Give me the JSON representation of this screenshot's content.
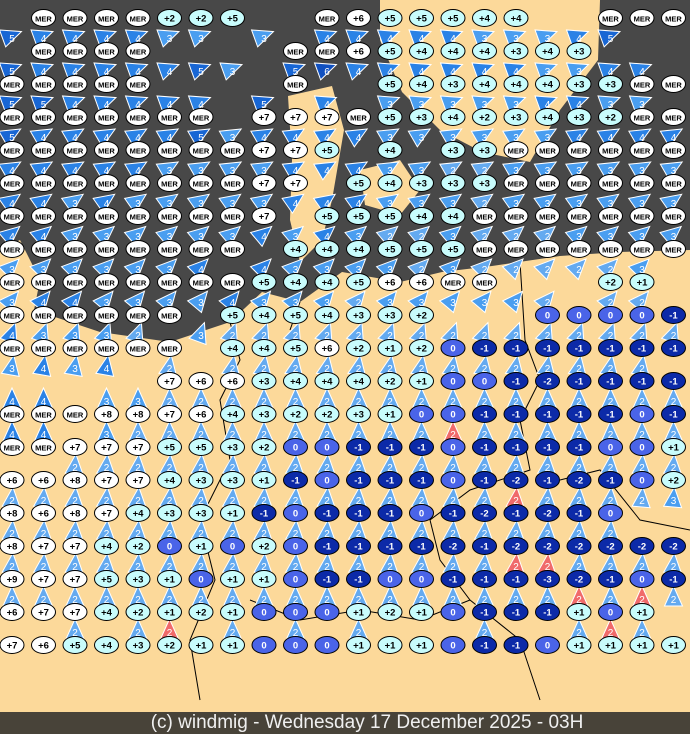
{
  "footer": {
    "credit": "(c) windmig - Wednesday 17 December 2025 - 03H"
  },
  "colors": {
    "sea": "#484848",
    "land": "#fcd99a",
    "border": "#000000",
    "temp_mer": "#ffffff",
    "temp_warm": "#ffffff",
    "temp_mild": "#c8fcfc",
    "temp_zero": "#4a64e8",
    "temp_minus": "#0c2aa8",
    "wind_2": "#64aaf0",
    "wind_3": "#4a9ef0",
    "wind_4": "#2a82e6",
    "wind_5": "#1866d4",
    "wind_6": "#1050c0",
    "wind_gust": "#f06a6a"
  },
  "map": {
    "rows": [
      {
        "temps": [
          "",
          "MER",
          "MER",
          "MER",
          "MER",
          "+2",
          "+2",
          "+5",
          "",
          "",
          "MER",
          "+6",
          "+5",
          "+5",
          "+5",
          "+4",
          "+4",
          "",
          "",
          "MER",
          "MER",
          "MER"
        ],
        "winds": "5444433 3 4444433345 ",
        "wind_dir_deg": 250
      },
      {
        "temps": [
          "",
          "MER",
          "MER",
          "MER",
          "MER",
          "",
          "",
          "",
          "",
          "MER",
          "MER",
          "+6",
          "+5",
          "+4",
          "+4",
          "+4",
          "+3",
          "+4",
          "+3",
          "",
          "",
          ""
        ],
        "winds": "54444453 564444443344",
        "wind_dir_deg": 250
      },
      {
        "temps": [
          "MER",
          "MER",
          "MER",
          "MER",
          "MER",
          "",
          "",
          "",
          "",
          "MER",
          "",
          "",
          "+5",
          "+4",
          "+3",
          "+4",
          "+4",
          "+4",
          "+3",
          "+3",
          "MER",
          "MER"
        ],
        "winds": "5544444 5 4 333334433",
        "wind_dir_deg": 250
      },
      {
        "temps": [
          "MER",
          "MER",
          "MER",
          "MER",
          "MER",
          "MER",
          "MER",
          "",
          "+7",
          "+7",
          "+7",
          "MER",
          "+5",
          "+3",
          "+4",
          "+2",
          "+3",
          "+4",
          "+3",
          "+2",
          "MER",
          "MER"
        ],
        "winds": "5444445344443333334444",
        "wind_dir_deg": 240
      },
      {
        "temps": [
          "MER",
          "MER",
          "MER",
          "MER",
          "MER",
          "MER",
          "MER",
          "MER",
          "+7",
          "+7",
          "+5",
          "",
          "+4",
          "",
          "+3",
          "+3",
          "MER",
          "MER",
          "MER",
          "MER",
          "MER",
          "MER"
        ],
        "winds": "4444433334443322333333",
        "wind_dir_deg": 240
      },
      {
        "temps": [
          "MER",
          "MER",
          "MER",
          "MER",
          "MER",
          "MER",
          "MER",
          "MER",
          "+7",
          "+7",
          "",
          "+5",
          "+4",
          "+3",
          "+3",
          "+3",
          "MER",
          "MER",
          "MER",
          "MER",
          "MER",
          "MER"
        ],
        "winds": "4434333334443332333333",
        "wind_dir_deg": 235
      },
      {
        "temps": [
          "MER",
          "MER",
          "MER",
          "MER",
          "MER",
          "MER",
          "MER",
          "MER",
          "+7",
          "",
          "+5",
          "+5",
          "+5",
          "+4",
          "+4",
          "MER",
          "MER",
          "MER",
          "MER",
          "MER",
          "MER",
          "MER"
        ],
        "winds": "4433333343432232223333",
        "wind_dir_deg": 230
      },
      {
        "temps": [
          "MER",
          "MER",
          "MER",
          "MER",
          "MER",
          "MER",
          "MER",
          "MER",
          "",
          "+4",
          "+4",
          "+4",
          "+5",
          "+5",
          "+5",
          "MER",
          "MER",
          "MER",
          "MER",
          "MER",
          "MER",
          "MER"
        ],
        "winds": "3333334 4333323222223 ",
        "wind_dir_deg": 225
      },
      {
        "temps": [
          "MER",
          "MER",
          "MER",
          "MER",
          "MER",
          "MER",
          "MER",
          "MER",
          "+5",
          "+4",
          "+4",
          "+5",
          "+6",
          "+6",
          "MER",
          "MER",
          "",
          "",
          "",
          "+2",
          "+1",
          ""
        ],
        "winds": "344333343332333332 22 ",
        "wind_dir_deg": 220
      },
      {
        "temps": [
          "MER",
          "MER",
          "MER",
          "MER",
          "MER",
          "MER",
          "",
          "+5",
          "+4",
          "+5",
          "+4",
          "+3",
          "+3",
          "+2",
          "",
          "",
          "",
          "0",
          "0",
          "0",
          "0",
          "-1"
        ],
        "winds": "43332 3222222222222222",
        "wind_dir_deg": 200
      },
      {
        "temps": [
          "MER",
          "MER",
          "MER",
          "MER",
          "MER",
          "MER",
          "",
          "+4",
          "+4",
          "+5",
          "+6",
          "+2",
          "+1",
          "+2",
          "0",
          "-1",
          "-1",
          "-1",
          "-1",
          "-1",
          "-1",
          "-1"
        ],
        "winds": "3434 2 22222222222222",
        "wind_dir_deg": 190
      },
      {
        "temps": [
          "",
          "",
          "",
          "",
          "",
          "+7",
          "+6",
          "+6",
          "+3",
          "+4",
          "+4",
          "+4",
          "+2",
          "+1",
          "0",
          "0",
          "-1",
          "-2",
          "-1",
          "-1",
          "-1",
          "-1"
        ],
        "winds": "44 3322222222222222222",
        "wind_dir_deg": 180
      },
      {
        "temps": [
          "MER",
          "MER",
          "MER",
          "+8",
          "+8",
          "+7",
          "+6",
          "+4",
          "+3",
          "+2",
          "+2",
          "+3",
          "+1",
          "0",
          "0",
          "-1",
          "-1",
          "-1",
          "-1",
          "-1",
          "0",
          "-1"
        ],
        "winds": "44 32222222222r2222222",
        "wind_dir_deg": 180
      },
      {
        "temps": [
          "MER",
          "MER",
          "+7",
          "+7",
          "+7",
          "+5",
          "+5",
          "+3",
          "+2",
          "0",
          "0",
          "-1",
          "-1",
          "-1",
          "0",
          "-1",
          "-1",
          "-1",
          "-1",
          "0",
          "0",
          "+1"
        ],
        "winds": "  22222222222222222222",
        "wind_dir_deg": 185
      },
      {
        "temps": [
          "+6",
          "+6",
          "+8",
          "+7",
          "+7",
          "+4",
          "+3",
          "+3",
          "+1",
          "-1",
          "0",
          "-1",
          "-1",
          "-1",
          "0",
          "-1",
          "-2",
          "-1",
          "-2",
          "-1",
          "0",
          "+2"
        ],
        "winds": "2222222222222222r22223",
        "wind_dir_deg": 185
      },
      {
        "temps": [
          "+8",
          "+6",
          "+8",
          "+7",
          "+4",
          "+3",
          "+3",
          "+1",
          "-1",
          "0",
          "-1",
          "-1",
          "-1",
          "0",
          "-1",
          "-2",
          "-1",
          "-2",
          "-1",
          "0",
          "",
          ""
        ],
        "winds": "22222222222222222222  ",
        "wind_dir_deg": 185
      },
      {
        "temps": [
          "+8",
          "+7",
          "+7",
          "+4",
          "+2",
          "0",
          "+1",
          "0",
          "+2",
          "0",
          "-1",
          "-1",
          "-1",
          "-1",
          "-2",
          "-1",
          "-2",
          "-2",
          "-2",
          "-2",
          "-2",
          "-2"
        ],
        "winds": "2222222222222222rr2222",
        "wind_dir_deg": 185
      },
      {
        "temps": [
          "+9",
          "+7",
          "+7",
          "+5",
          "+3",
          "+1",
          "0",
          "+1",
          "+1",
          "0",
          "-1",
          "-1",
          "0",
          "0",
          "-1",
          "-1",
          "-1",
          "-3",
          "-2",
          "-1",
          "0",
          "-1"
        ],
        "winds": "222222222222222222r2r2",
        "wind_dir_deg": 180
      },
      {
        "temps": [
          "+6",
          "+7",
          "+7",
          "+4",
          "+2",
          "+1",
          "+2",
          "+1",
          "0",
          "0",
          "0",
          "+1",
          "+2",
          "+1",
          "0",
          "-1",
          "-1",
          "-1",
          "+1",
          "0",
          "+1",
          ""
        ],
        "winds": "  2 2r 2 2 2   2  2r2 ",
        "wind_dir_deg": 180
      },
      {
        "temps": [
          "+7",
          "+6",
          "+5",
          "+4",
          "+3",
          "+2",
          "+1",
          "+1",
          "0",
          "0",
          "0",
          "+1",
          "+1",
          "+1",
          "0",
          "-1",
          "-1",
          "0",
          "+1",
          "+1",
          "+1",
          "+1"
        ],
        "winds": "                      ",
        "wind_dir_deg": 180
      }
    ]
  }
}
